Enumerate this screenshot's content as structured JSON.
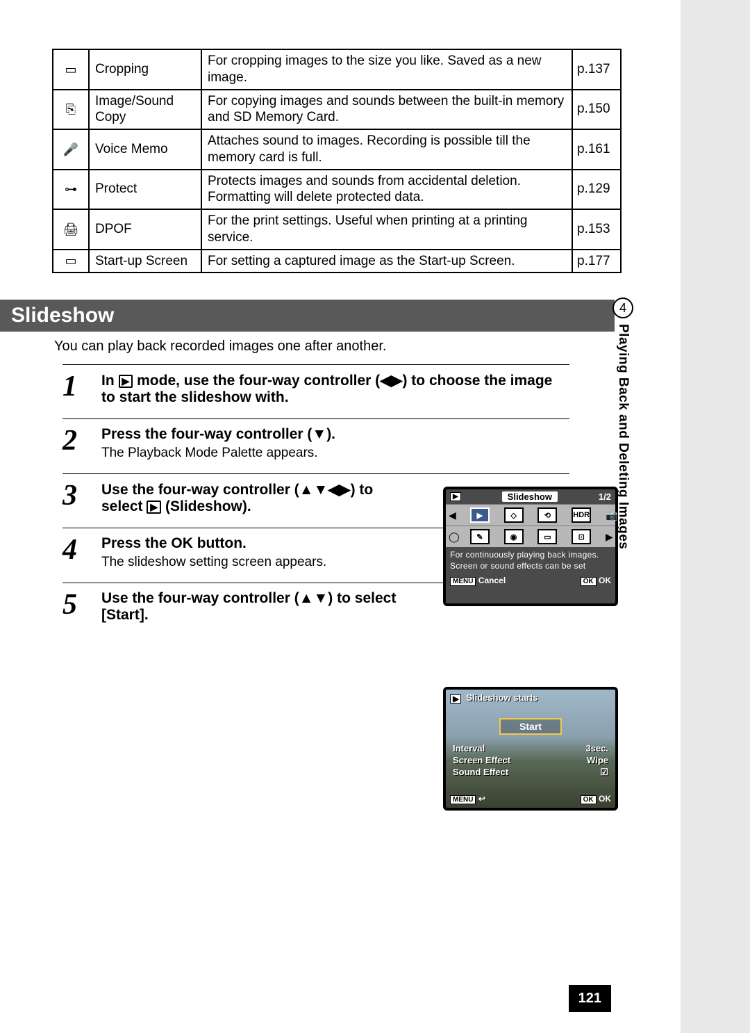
{
  "table": {
    "rows": [
      {
        "icon": "▭",
        "name": "Cropping",
        "desc": "For cropping images to the size you like. Saved as a new image.",
        "page": "p.137"
      },
      {
        "icon": "⎘",
        "name": "Image/Sound Copy",
        "desc": "For copying images and sounds between the built-in memory and SD Memory Card.",
        "page": "p.150"
      },
      {
        "icon": "🎤",
        "name": "Voice Memo",
        "desc": "Attaches sound to images. Recording is possible till the memory card is full.",
        "page": "p.161"
      },
      {
        "icon": "⊶",
        "name": "Protect",
        "desc": "Protects images and sounds from accidental deletion. Formatting will delete protected data.",
        "page": "p.129"
      },
      {
        "icon": "🖨",
        "name": "DPOF",
        "desc": "For the print settings. Useful when printing at a printing service.",
        "page": "p.153"
      },
      {
        "icon": "▭",
        "name": "Start-up Screen",
        "desc": "For setting a captured image as the Start-up Screen.",
        "page": "p.177"
      }
    ]
  },
  "section": {
    "title": "Slideshow",
    "intro": "You can play back recorded images one after another."
  },
  "steps": [
    {
      "n": "1",
      "bold_pre": "In ",
      "bold_icon": "▶",
      "bold_post": " mode, use the four-way controller (◀▶) to choose the image to start the slideshow with.",
      "sub": ""
    },
    {
      "n": "2",
      "bold_pre": "Press the four-way controller (▼).",
      "bold_icon": "",
      "bold_post": "",
      "sub": "The Playback Mode Palette appears."
    },
    {
      "n": "3",
      "bold_pre": "Use the four-way controller (▲▼◀▶) to select ",
      "bold_icon": "▶",
      "bold_post": " (Slideshow).",
      "sub": ""
    },
    {
      "n": "4",
      "bold_pre": "Press the ",
      "bold_ok": "OK",
      "bold_post": " button.",
      "sub": "The slideshow setting screen appears."
    },
    {
      "n": "5",
      "bold_pre": "Use the four-way controller (▲▼) to select [Start].",
      "bold_icon": "",
      "bold_post": "",
      "sub": ""
    }
  ],
  "side": {
    "num": "4",
    "label": "Playing Back and Deleting Images"
  },
  "pagenum": "121",
  "lcd1": {
    "playback_icon": "▶",
    "title": "Slideshow",
    "counter": "1/2",
    "row1": [
      "◀",
      "▶",
      "◇",
      "⟲",
      "HDR",
      "📷"
    ],
    "row2": [
      "◯",
      "✎",
      "◉",
      "▭",
      "⊡",
      "▶"
    ],
    "desc": "For continuously playing back images. Screen or sound effects can be set",
    "menu": "MENU",
    "cancel": "Cancel",
    "ok": "OK",
    "okword": "OK"
  },
  "lcd2": {
    "playback_icon": "▶",
    "title": "Slideshow starts",
    "start": "Start",
    "rows": [
      {
        "l": "Interval",
        "r": "3sec."
      },
      {
        "l": "Screen Effect",
        "r": "Wipe"
      },
      {
        "l": "Sound Effect",
        "r": "☑"
      }
    ],
    "menu": "MENU",
    "back": "↩",
    "ok": "OK",
    "okword": "OK"
  }
}
